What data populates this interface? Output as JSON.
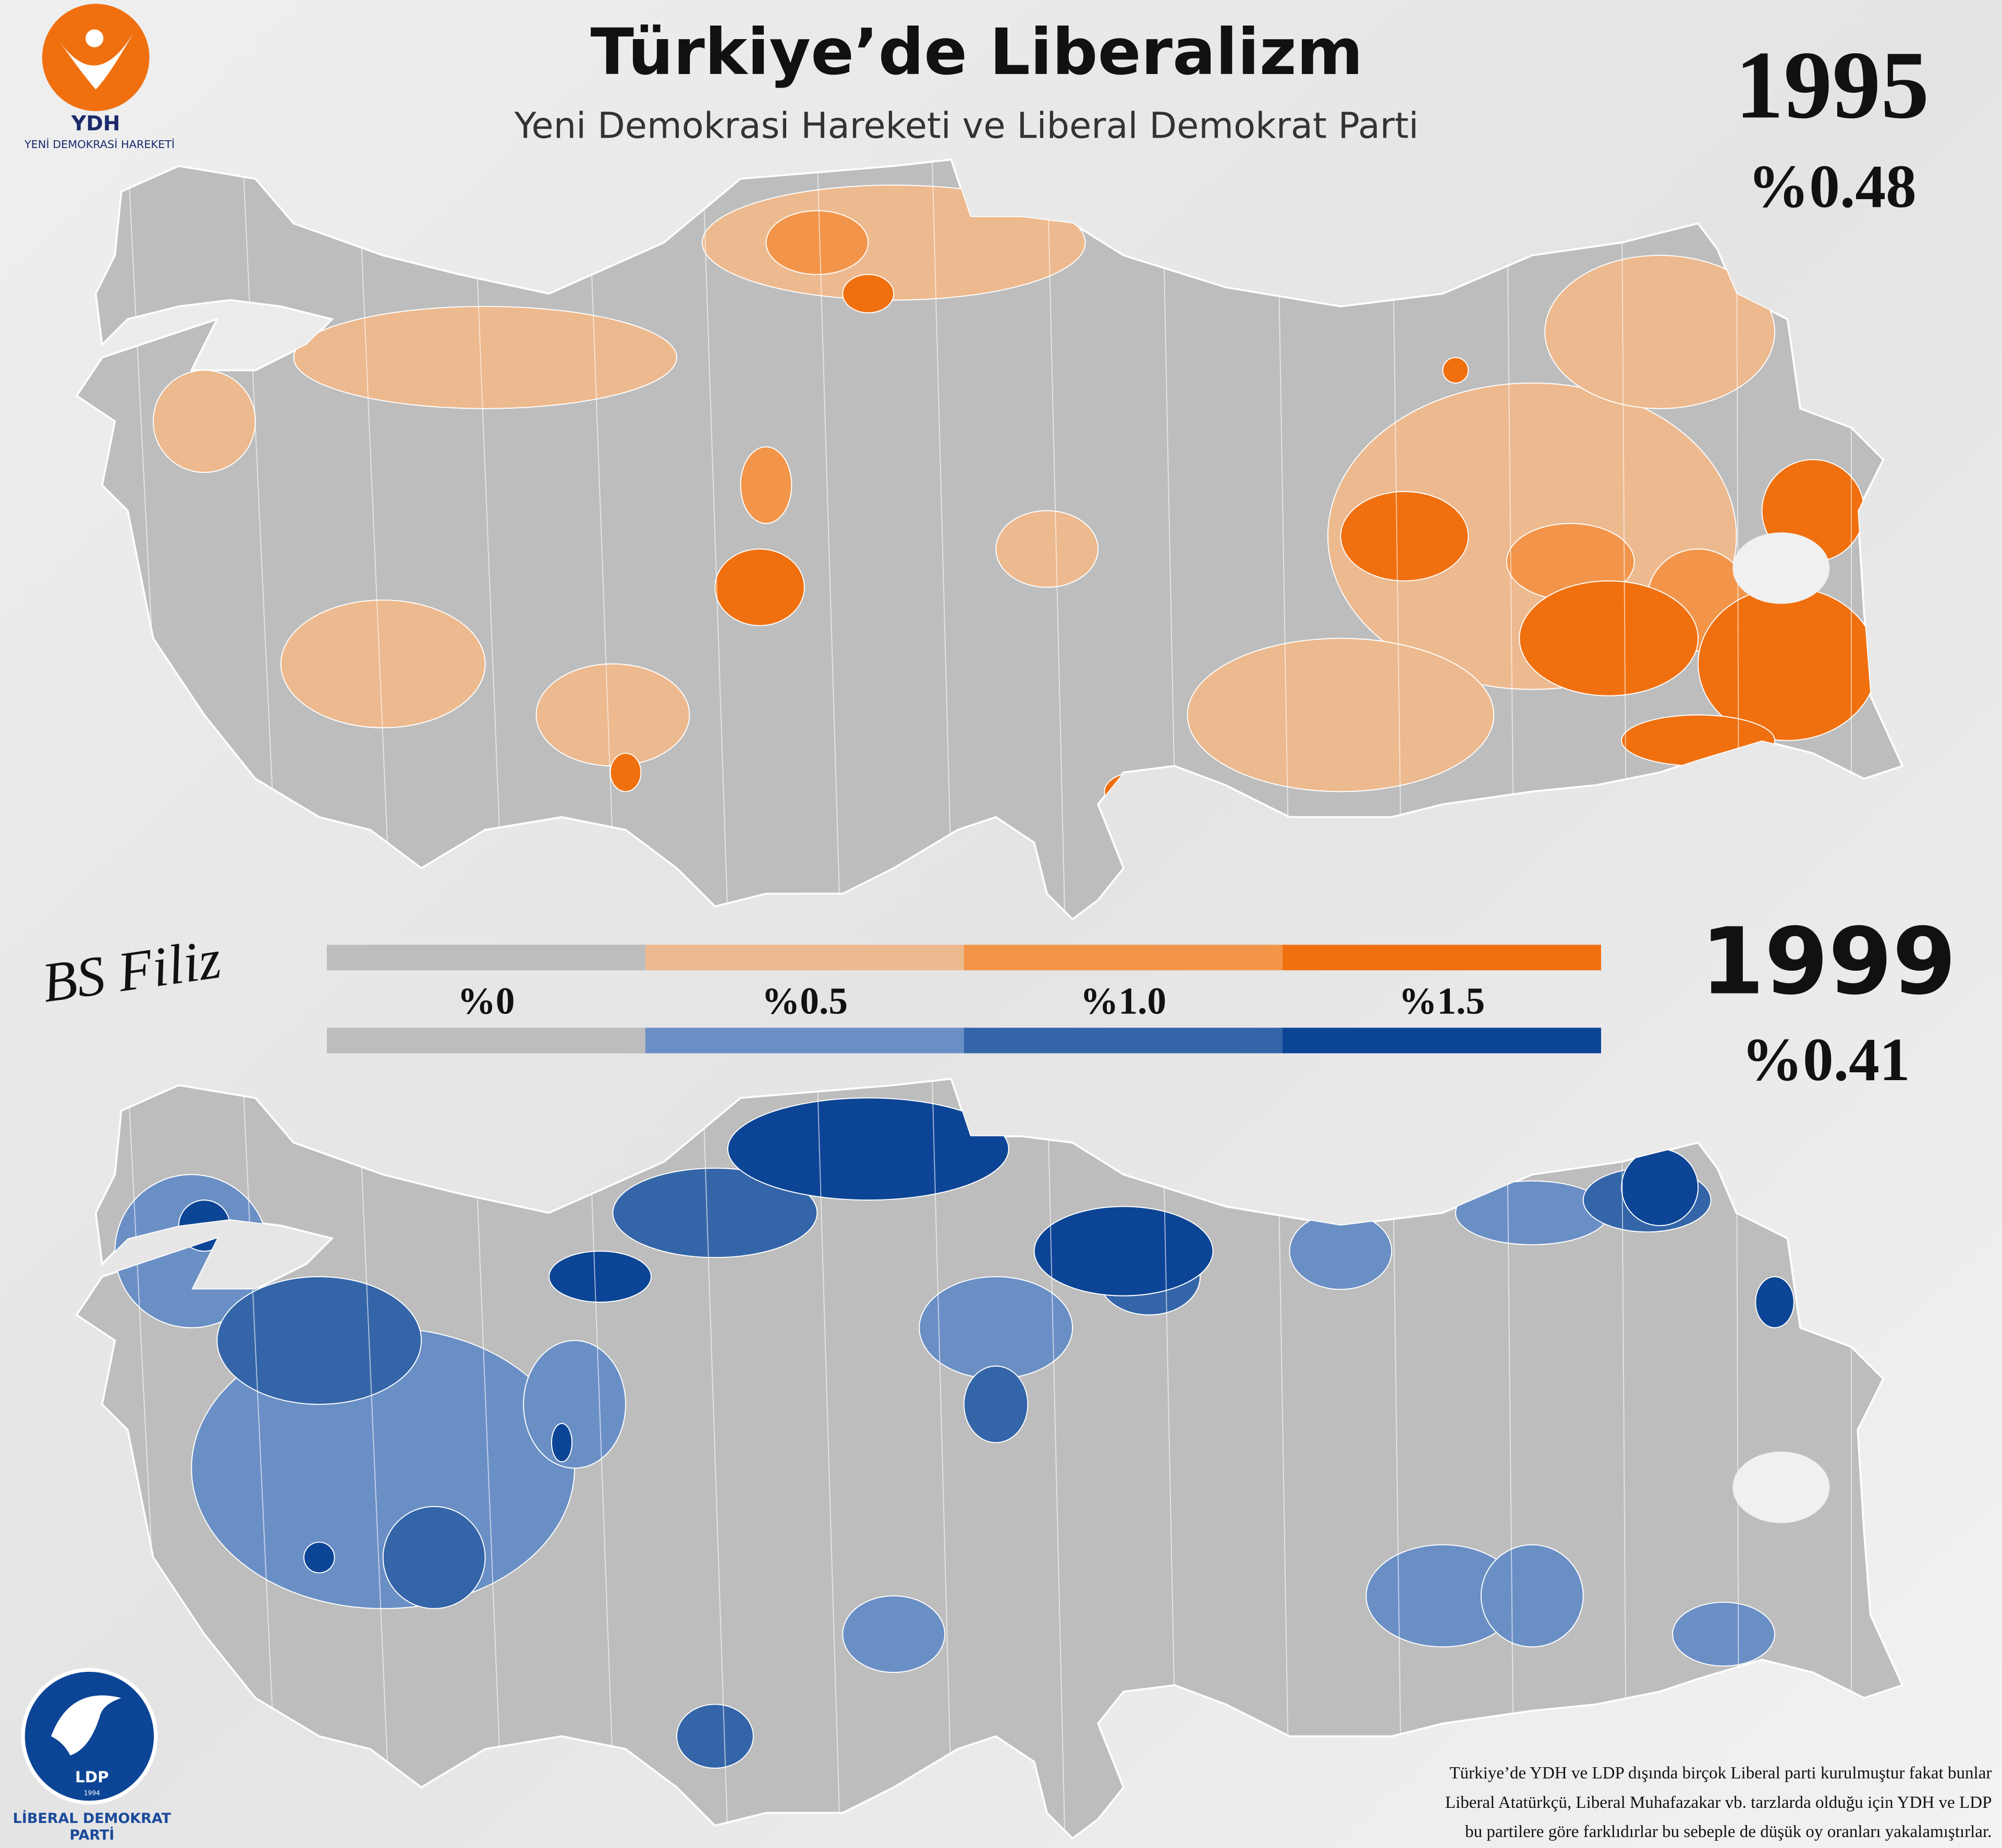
{
  "header": {
    "title": "Türkiye’de Liberalizm",
    "subtitle": "Yeni Demokrasi Hareketi ve Liberal Demokrat Parti"
  },
  "maps": [
    {
      "year": "1995",
      "share": "%0.48",
      "party": {
        "abbr": "YDH",
        "name": "YENİ DEMOKRASİ HAREKETİ"
      }
    },
    {
      "year": "1999",
      "share": "%0.41",
      "party": {
        "abbr": "LDP",
        "founded": "1994",
        "name_lines": [
          "LİBERAL DEMOKRAT",
          "PARTİ"
        ]
      }
    }
  ],
  "legend": {
    "labels": [
      "%0",
      "%0.5",
      "%1.0",
      "%1.5"
    ],
    "scale_1995": [
      "#bdbdbd",
      "#edb98e",
      "#f2954a",
      "#f07010"
    ],
    "scale_1999": [
      "#bdbdbd",
      "#6a8fc5",
      "#3465a8",
      "#0c4596"
    ]
  },
  "signature": "BS Filiz",
  "footnote": [
    "Türkiye’de YDH ve LDP dışında birçok Liberal parti kurulmuştur fakat bunlar",
    "Liberal Atatürkçü, Liberal Muhafazakar vb. tarzlarda olduğu için YDH ve LDP",
    "bu partilere göre farklıdırlar bu sebeple de düşük oy oranları yakalamıştırlar."
  ]
}
